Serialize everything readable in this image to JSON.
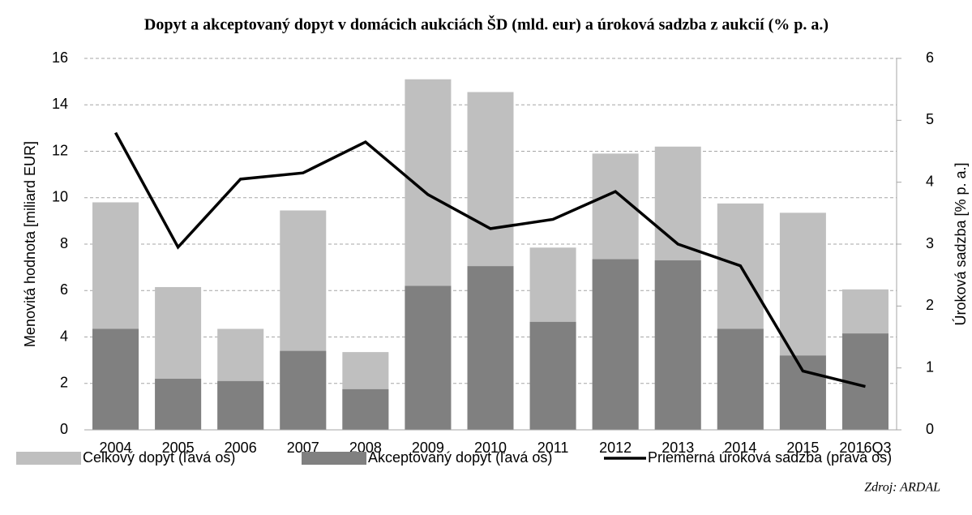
{
  "chart_data": {
    "type": "bar",
    "title": "Dopyt a akceptovaný dopyt v domácich aukciách ŠD (mld. eur) a úroková sadzba z aukcií (% p. a.)",
    "ylabel": "Menovitá hodnota [miliard EUR]",
    "y2label": "Úroková sadzba [% p. a.]",
    "source": "Zdroj: ARDAL",
    "categories": [
      "2004",
      "2005",
      "2006",
      "2007",
      "2008",
      "2009",
      "2010",
      "2011",
      "2012",
      "2013",
      "2014",
      "2015",
      "2016Q3"
    ],
    "series": [
      {
        "name": "Celkový dopyt (ľavá os)",
        "type": "bar",
        "color": "#bfbfbf",
        "values": [
          9.8,
          6.15,
          4.35,
          9.45,
          3.35,
          15.1,
          14.55,
          7.85,
          11.9,
          12.2,
          9.75,
          9.35,
          6.05
        ]
      },
      {
        "name": "Akceptovaný dopyt (ľavá os)",
        "type": "bar",
        "color": "#808080",
        "values": [
          4.35,
          2.2,
          2.1,
          3.4,
          1.75,
          6.2,
          7.05,
          4.65,
          7.35,
          7.3,
          4.35,
          3.2,
          4.15
        ]
      },
      {
        "name": "Priemerná úroková sadzba (pravá os)",
        "type": "line",
        "axis": "y2",
        "color": "#000000",
        "values": [
          4.8,
          2.95,
          4.05,
          4.15,
          4.65,
          3.8,
          3.25,
          3.4,
          3.85,
          3.0,
          2.65,
          0.95,
          0.7
        ]
      }
    ],
    "ylim": [
      0,
      16
    ],
    "yticks": [
      0,
      2,
      4,
      6,
      8,
      10,
      12,
      14,
      16
    ],
    "y2lim": [
      0,
      6
    ],
    "y2ticks": [
      0,
      1,
      2,
      3,
      4,
      5,
      6
    ],
    "grid": true
  }
}
